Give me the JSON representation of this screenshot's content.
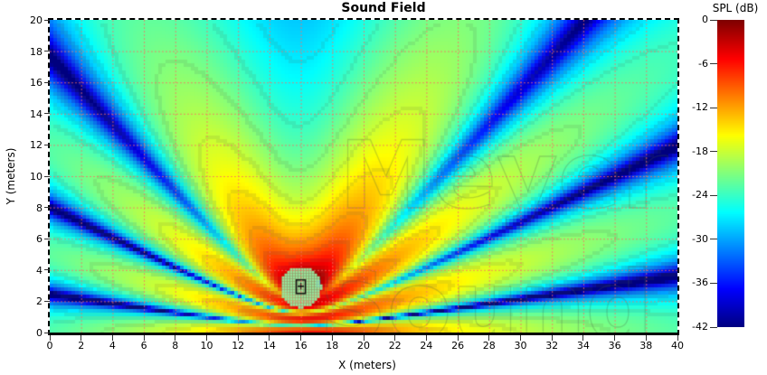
{
  "chart_data": {
    "type": "heatmap",
    "title": "Sound Field",
    "xlabel": "X (meters)",
    "ylabel": "Y (meters)",
    "xlim": [
      0,
      40
    ],
    "ylim": [
      0,
      20
    ],
    "x_ticks": [
      0,
      2,
      4,
      6,
      8,
      10,
      12,
      14,
      16,
      18,
      20,
      22,
      24,
      26,
      28,
      30,
      32,
      34,
      36,
      38,
      40
    ],
    "y_ticks": [
      0,
      2,
      4,
      6,
      8,
      10,
      12,
      14,
      16,
      18,
      20
    ],
    "grid": {
      "spacing_m": 2,
      "style": "dotted",
      "color": "rgba(250,110,100,0.75)"
    },
    "colorbar": {
      "label": "SPL (dB)",
      "max": 0,
      "min": -42,
      "ticks": [
        0,
        -6,
        -12,
        -18,
        -24,
        -30,
        -36,
        -42
      ],
      "colormap": "jet",
      "position": "right"
    },
    "source": {
      "x": 16,
      "y": 2.9,
      "kind": "loudspeaker",
      "marker": "light-green filled circle with black speaker glyph",
      "marker_radius_m": 1.3
    },
    "field_model": {
      "description": "point source above reflecting ground; SPL = 20*log10(gain*|w1/r1*e^(ikr1) + R*w2/r2*e^(ikr2)|) clipped to [-42,0] dB",
      "wavelength_m": 1.714,
      "ground_reflection": 0.95,
      "gain": 0.85,
      "directivity": {
        "base": 0.88,
        "depth": 0.32,
        "aim_deg": 55
      },
      "contour_interval_db": 3
    }
  },
  "watermark": {
    "line1": "Meyer",
    "line2": "Sound"
  },
  "colors": {
    "background": "#ffffff",
    "title": "#000000",
    "axis_text": "#000000",
    "plot_border": "#000000",
    "tick": "#333333",
    "contour": "rgba(70,90,70,0.12)",
    "watermark_stroke": "rgba(70,95,70,0.26)",
    "marker_fill": "#98e29a",
    "marker_glyph": "#111111",
    "marker_accent": "#3f6fd8"
  }
}
